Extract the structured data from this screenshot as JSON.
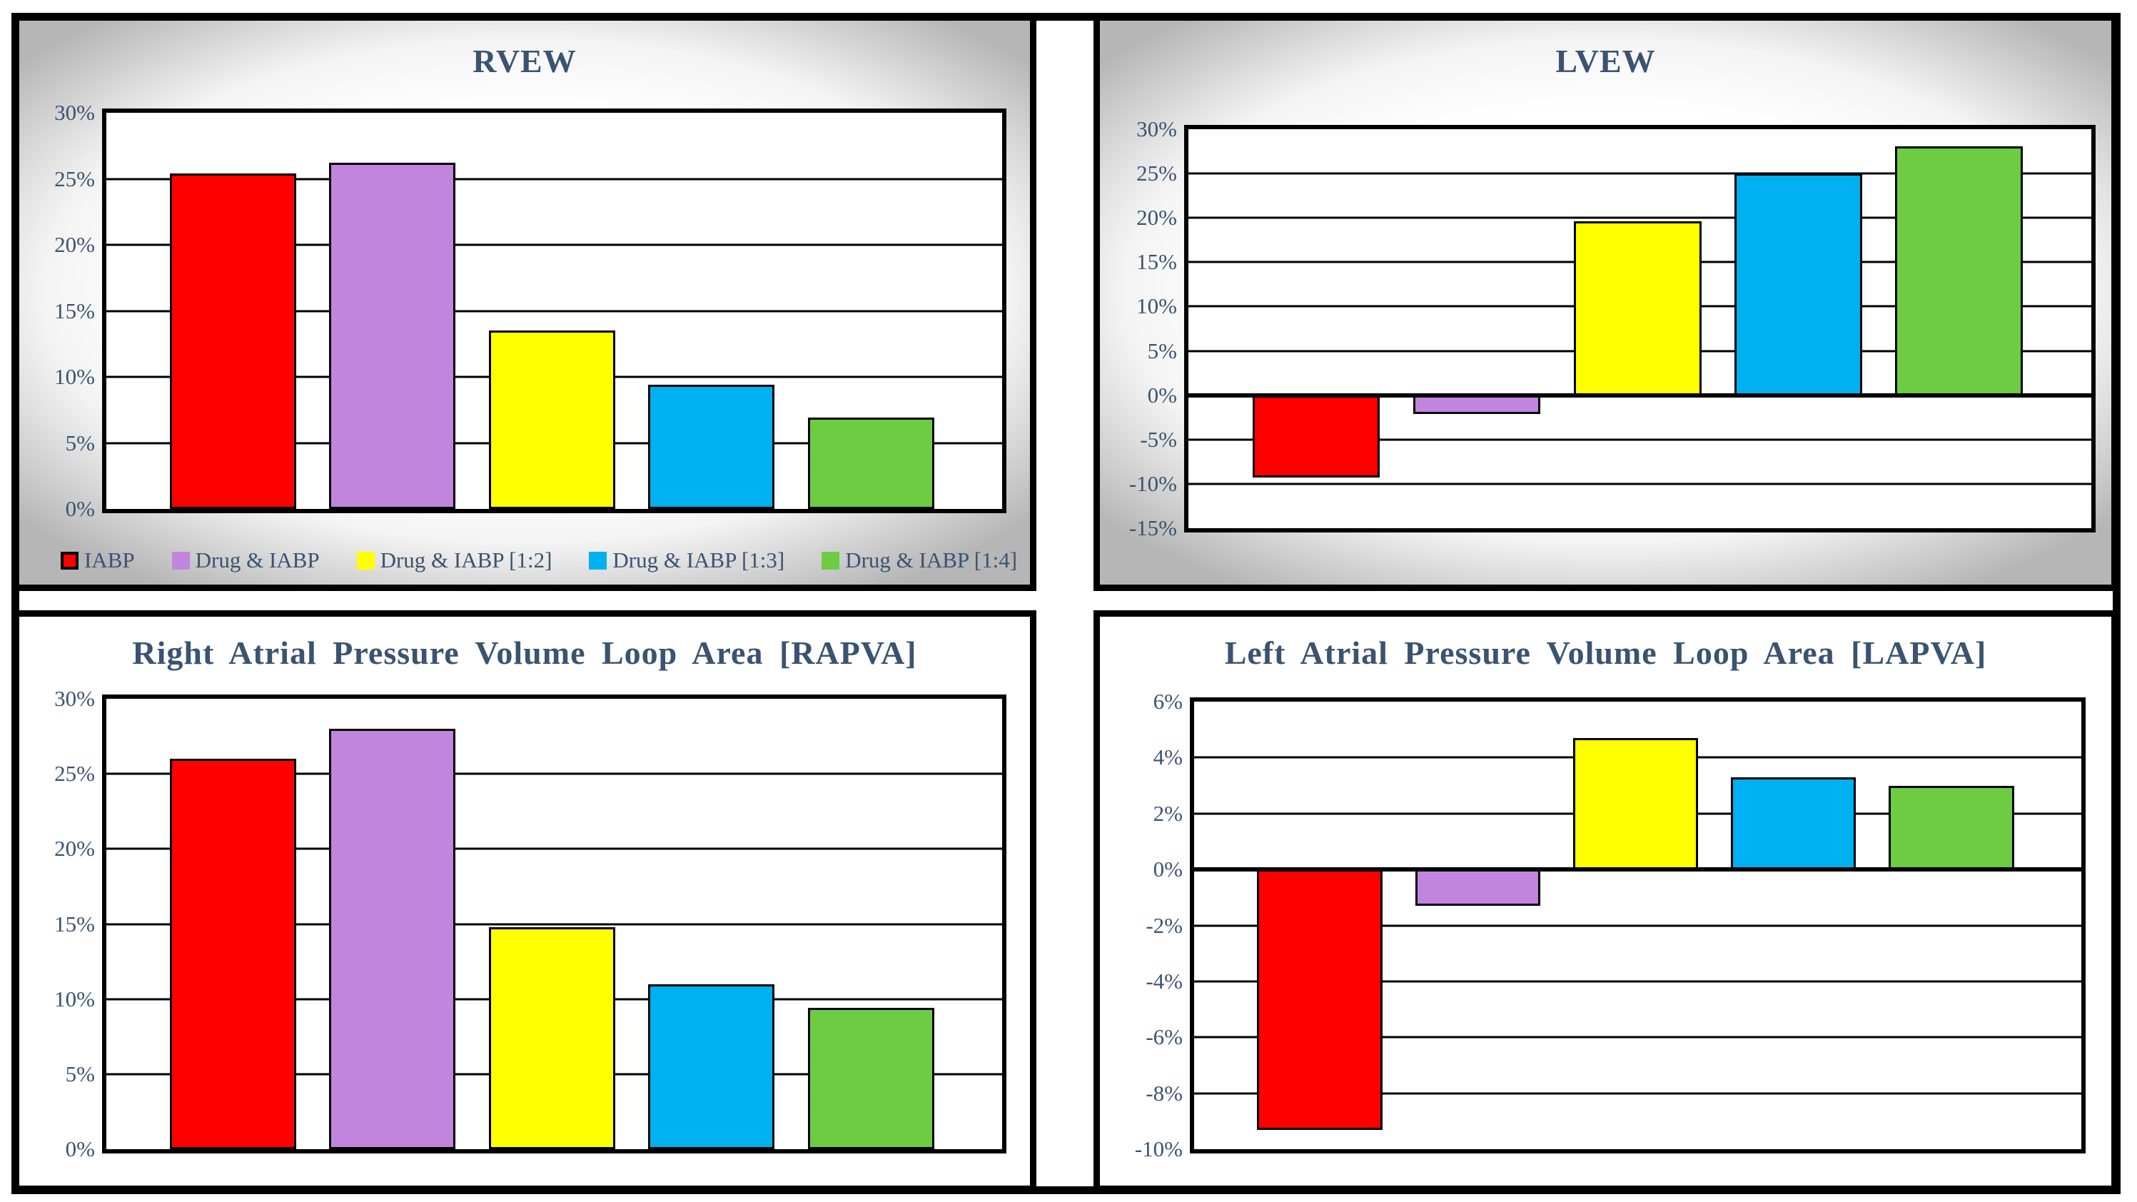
{
  "palette": {
    "series_colors": [
      "#FF0000",
      "#C285DD",
      "#FFFF00",
      "#00B0F0",
      "#6DCC42"
    ],
    "bar_border": "#000000",
    "text_color": "#3A5371",
    "panel_border": "#000000",
    "top_panel_gradient_edge": "#B6B6B6",
    "plot_background": "#FFFFFF"
  },
  "legend": {
    "items": [
      {
        "label": "IABP",
        "color": "#FF0000",
        "bordered": true
      },
      {
        "label": "Drug & IABP",
        "color": "#C285DD",
        "bordered": false
      },
      {
        "label": "Drug & IABP [1:2]",
        "color": "#FFFF00",
        "bordered": false
      },
      {
        "label": "Drug & IABP [1:3]",
        "color": "#00B0F0",
        "bordered": false
      },
      {
        "label": "Drug & IABP [1:4]",
        "color": "#6DCC42",
        "bordered": false
      }
    ]
  },
  "chart_data": [
    {
      "type": "bar",
      "title": "RVEW",
      "categories": [
        "IABP",
        "Drug & IABP",
        "Drug & IABP [1:2]",
        "Drug & IABP [1:3]",
        "Drug & IABP [1:4]"
      ],
      "values": [
        25.4,
        26.2,
        13.5,
        9.4,
        6.9
      ],
      "ylim": [
        0,
        30
      ],
      "ytick_values": [
        30,
        25,
        20,
        15,
        10,
        5,
        0
      ],
      "ytick_labels": [
        "30%",
        "25%",
        "20%",
        "15%",
        "10%",
        "5%",
        "0%"
      ],
      "grid": true,
      "legend_position": "bottom"
    },
    {
      "type": "bar",
      "title": "LVEW",
      "categories": [
        "IABP",
        "Drug & IABP",
        "Drug & IABP [1:2]",
        "Drug & IABP [1:3]",
        "Drug & IABP [1:4]"
      ],
      "values": [
        -9.3,
        -2.1,
        19.6,
        25.0,
        28.1
      ],
      "ylim": [
        -15,
        30
      ],
      "ytick_values": [
        30,
        25,
        20,
        15,
        10,
        5,
        0,
        -5,
        -10,
        -15
      ],
      "ytick_labels": [
        "30%",
        "25%",
        "20%",
        "15%",
        "10%",
        "5%",
        "0%",
        "-5%",
        "-10%",
        "-15%"
      ],
      "grid": true,
      "legend_position": "none"
    },
    {
      "type": "bar",
      "title": "Right Atrial Pressure Volume Loop Area [RAPVA]",
      "categories": [
        "IABP",
        "Drug & IABP",
        "Drug & IABP [1:2]",
        "Drug & IABP [1:3]",
        "Drug & IABP [1:4]"
      ],
      "values": [
        26.0,
        28.0,
        14.8,
        11.0,
        9.4
      ],
      "ylim": [
        0,
        30
      ],
      "ytick_values": [
        30,
        25,
        20,
        15,
        10,
        5,
        0
      ],
      "ytick_labels": [
        "30%",
        "25%",
        "20%",
        "15%",
        "10%",
        "5%",
        "0%"
      ],
      "grid": true,
      "legend_position": "none"
    },
    {
      "type": "bar",
      "title": "Left Atrial Pressure Volume Loop Area [LAPVA]",
      "categories": [
        "IABP",
        "Drug & IABP",
        "Drug & IABP [1:2]",
        "Drug & IABP [1:3]",
        "Drug & IABP [1:4]"
      ],
      "values": [
        -9.3,
        -1.3,
        4.7,
        3.3,
        3.0
      ],
      "ylim": [
        -10,
        6
      ],
      "ytick_values": [
        6,
        4,
        2,
        0,
        -2,
        -4,
        -6,
        -8,
        -10
      ],
      "ytick_labels": [
        "6%",
        "4%",
        "2%",
        "0%",
        "-2%",
        "-4%",
        "-6%",
        "-8%",
        "-10%"
      ],
      "grid": true,
      "legend_position": "none"
    }
  ]
}
